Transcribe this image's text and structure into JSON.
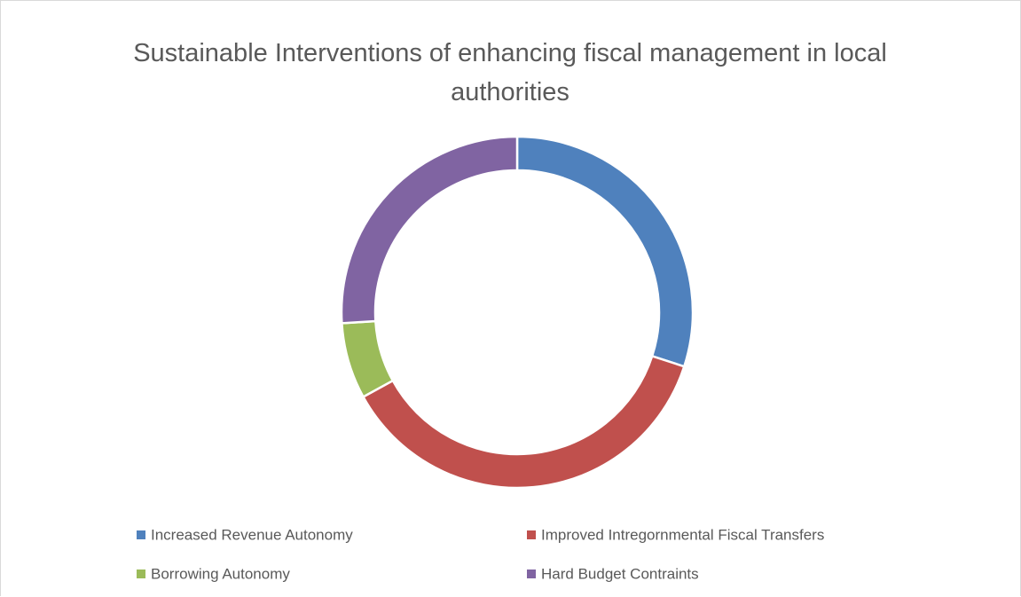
{
  "chart_data": {
    "type": "donut",
    "title": "Sustainable Interventions of enhancing fiscal management in local authorities",
    "categories": [
      "Increased Revenue Autonomy",
      "Improved Intregornmental Fiscal Transfers",
      "Borrowing Autonomy",
      "Hard Budget Contraints"
    ],
    "values": [
      30,
      37,
      7,
      26
    ],
    "colors": [
      "#4f81bd",
      "#c0504d",
      "#9bbb59",
      "#8064a2"
    ],
    "legend": "bottom"
  }
}
